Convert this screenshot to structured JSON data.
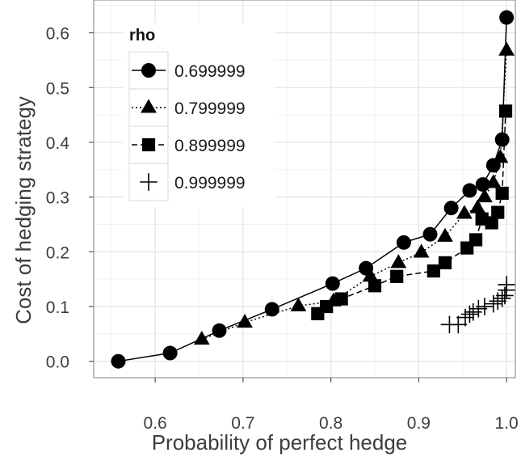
{
  "chart_data": {
    "type": "line",
    "xlabel": "Probability of perfect hedge",
    "ylabel": "Cost of hedging strategy",
    "xlim": [
      0.53,
      1.01
    ],
    "ylim": [
      -0.03,
      0.66
    ],
    "x_ticks": [
      0.6,
      0.7,
      0.8,
      0.9,
      1.0
    ],
    "x_tick_labels": [
      "0.6",
      "0.7",
      "0.8",
      "0.9",
      "1.0"
    ],
    "y_ticks": [
      0.0,
      0.1,
      0.2,
      0.3,
      0.4,
      0.5,
      0.6
    ],
    "y_tick_labels": [
      "0.0",
      "0.1",
      "0.2",
      "0.3",
      "0.4",
      "0.5",
      "0.6"
    ],
    "grid": true,
    "legend": {
      "title": "rho",
      "position": "top-left"
    },
    "series": [
      {
        "name": "0.699999",
        "marker": "circle",
        "line": "solid",
        "points": [
          [
            0.558,
            0.0
          ],
          [
            0.617,
            0.015
          ],
          [
            0.673,
            0.056
          ],
          [
            0.733,
            0.095
          ],
          [
            0.802,
            0.142
          ],
          [
            0.84,
            0.17
          ],
          [
            0.883,
            0.217
          ],
          [
            0.913,
            0.232
          ],
          [
            0.937,
            0.28
          ],
          [
            0.958,
            0.312
          ],
          [
            0.973,
            0.323
          ],
          [
            0.985,
            0.358
          ],
          [
            0.995,
            0.405
          ],
          [
            1.0,
            0.628
          ]
        ]
      },
      {
        "name": "0.799999",
        "marker": "triangle",
        "line": "dotted",
        "points": [
          [
            0.653,
            0.04
          ],
          [
            0.702,
            0.071
          ],
          [
            0.763,
            0.101
          ],
          [
            0.803,
            0.11
          ],
          [
            0.845,
            0.155
          ],
          [
            0.877,
            0.18
          ],
          [
            0.903,
            0.199
          ],
          [
            0.93,
            0.228
          ],
          [
            0.952,
            0.27
          ],
          [
            0.967,
            0.28
          ],
          [
            0.975,
            0.3
          ],
          [
            0.985,
            0.326
          ],
          [
            0.993,
            0.372
          ],
          [
            1.0,
            0.568
          ]
        ]
      },
      {
        "name": "0.899999",
        "marker": "square",
        "line": "dashed",
        "points": [
          [
            0.785,
            0.087
          ],
          [
            0.795,
            0.1
          ],
          [
            0.812,
            0.114
          ],
          [
            0.85,
            0.138
          ],
          [
            0.875,
            0.155
          ],
          [
            0.917,
            0.165
          ],
          [
            0.93,
            0.18
          ],
          [
            0.955,
            0.207
          ],
          [
            0.965,
            0.222
          ],
          [
            0.972,
            0.26
          ],
          [
            0.983,
            0.253
          ],
          [
            0.99,
            0.272
          ],
          [
            0.995,
            0.307
          ],
          [
            0.999,
            0.457
          ]
        ]
      },
      {
        "name": "0.999999",
        "marker": "plus",
        "line": "none",
        "points": [
          [
            0.935,
            0.067
          ],
          [
            0.945,
            0.067
          ],
          [
            0.953,
            0.08
          ],
          [
            0.958,
            0.086
          ],
          [
            0.962,
            0.09
          ],
          [
            0.968,
            0.096
          ],
          [
            0.975,
            0.1
          ],
          [
            0.985,
            0.105
          ],
          [
            0.99,
            0.11
          ],
          [
            0.995,
            0.115
          ],
          [
            0.998,
            0.12
          ],
          [
            1.0,
            0.13
          ],
          [
            1.0,
            0.14
          ]
        ]
      }
    ]
  }
}
